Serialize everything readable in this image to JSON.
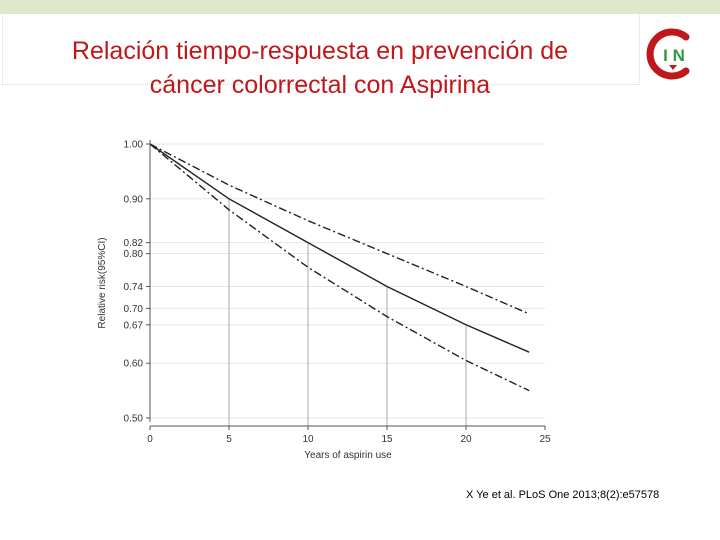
{
  "slide": {
    "title_line1": "Relación tiempo-respuesta en prevención de",
    "title_line2": "cáncer colorrectal con Aspirina",
    "citation": "X Ye et al. PLoS One 2013;8(2):e57578",
    "logo_letters": "I N",
    "accent_color": "#c0171b",
    "logo_green": "#2e9b40"
  },
  "chart_data": {
    "type": "line",
    "xlabel": "Years of aspirin use",
    "ylabel": "Relative risk(95%CI)",
    "xlim": [
      0,
      25
    ],
    "ylim": [
      0.5,
      1.0
    ],
    "x_ticks": [
      0,
      5,
      10,
      15,
      20,
      25
    ],
    "y_ticks": [
      0.5,
      0.6,
      0.67,
      0.7,
      0.74,
      0.8,
      0.82,
      0.9,
      1.0
    ],
    "y_tick_labels": [
      "0.50",
      "0.60",
      "0.67",
      "0.70",
      "0.74",
      "0.80",
      "0.82",
      "0.90",
      "1.00"
    ],
    "grid": true,
    "reference_lines": [
      {
        "x": 5,
        "y": 0.9
      },
      {
        "x": 10,
        "y": 0.82
      },
      {
        "x": 15,
        "y": 0.74
      },
      {
        "x": 20,
        "y": 0.67
      }
    ],
    "series": [
      {
        "style": "solid",
        "x": [
          0,
          5,
          10,
          15,
          20,
          24
        ],
        "y": [
          1.0,
          0.9,
          0.82,
          0.74,
          0.67,
          0.62
        ]
      },
      {
        "style": "dashdot",
        "x": [
          0,
          5,
          10,
          15,
          20,
          24
        ],
        "y": [
          1.0,
          0.925,
          0.86,
          0.8,
          0.74,
          0.69
        ]
      },
      {
        "style": "dashdot",
        "x": [
          0,
          5,
          10,
          15,
          20,
          24
        ],
        "y": [
          1.0,
          0.88,
          0.775,
          0.685,
          0.605,
          0.55
        ]
      }
    ]
  }
}
